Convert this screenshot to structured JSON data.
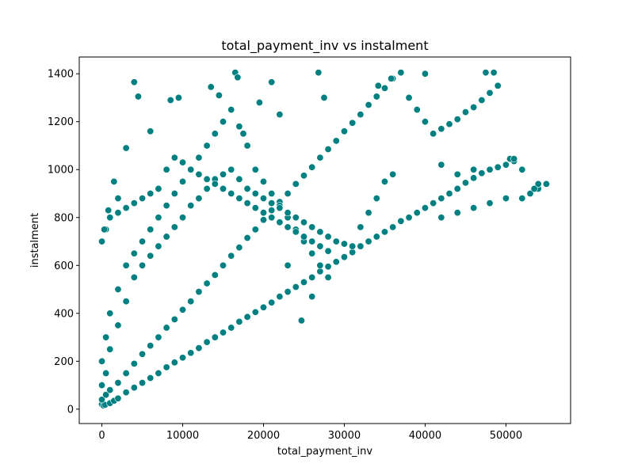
{
  "chart_data": {
    "type": "scatter",
    "title": "total_payment_inv vs instalment",
    "xlabel": "total_payment_inv",
    "ylabel": "instalment",
    "xlim": [
      -2800,
      58000
    ],
    "ylim": [
      -60,
      1470
    ],
    "x_ticks": [
      0,
      10000,
      20000,
      30000,
      40000,
      50000
    ],
    "x_tick_labels": [
      "0",
      "10000",
      "20000",
      "30000",
      "40000",
      "50000"
    ],
    "y_ticks": [
      0,
      200,
      400,
      600,
      800,
      1000,
      1200,
      1400
    ],
    "y_tick_labels": [
      "0",
      "200",
      "400",
      "600",
      "800",
      "1000",
      "1200",
      "1400"
    ],
    "grid": false,
    "legend": "none",
    "marker_color": "#008080",
    "marker_edge_color": "#ffffff",
    "series": [
      {
        "x": [
          0,
          200,
          400,
          1000,
          1500,
          2000,
          3000,
          4000,
          5000,
          6000,
          7000,
          8000,
          9000,
          10000,
          11000,
          12000,
          13000,
          14000,
          15000,
          16000,
          17000,
          18000,
          19000,
          20000,
          21000,
          22000,
          23000,
          24000,
          25000,
          26000,
          27000,
          28000,
          29000,
          30000,
          31000,
          32000,
          33000,
          34000,
          35000,
          36000,
          37000,
          38000,
          39000,
          40000,
          41000,
          42000,
          43000,
          44000,
          45000,
          46000,
          47000,
          48000,
          49000,
          50000,
          51000,
          52000,
          53000,
          54000,
          55000,
          0,
          500,
          1000,
          2000,
          3000,
          4000,
          5000,
          6000,
          7000,
          8000,
          9000,
          10000,
          11000,
          12000,
          13000,
          14000,
          15000,
          16000,
          17000,
          18000,
          19000,
          20000,
          21000,
          22000,
          23000,
          24000,
          25000,
          26000,
          27000,
          28000,
          29000,
          30000,
          31000,
          32000,
          33000,
          34000,
          35000,
          36000,
          37000,
          38000,
          39000,
          40000,
          41000,
          42000,
          43000,
          44000,
          45000,
          46000,
          47000,
          48000,
          49000,
          0,
          500,
          1000,
          2000,
          3000,
          4000,
          5000,
          6000,
          7000,
          8000,
          9000,
          10000,
          11000,
          12000,
          13000,
          14000,
          15000,
          16000,
          17000,
          18000,
          19000,
          20000,
          21000,
          22000,
          23000,
          24000,
          25000,
          26000,
          27000,
          28000,
          0,
          500,
          1000,
          2000,
          3000,
          4000,
          5000,
          6000,
          7000,
          8000,
          9000,
          10000,
          11000,
          12000,
          13000,
          14000,
          15000,
          16000,
          17000,
          18000,
          19000,
          20000,
          21000,
          22000,
          23000,
          24000,
          25000,
          26000,
          27000,
          28000,
          29000,
          30000,
          31000,
          32000,
          33000,
          34000,
          35000,
          36000,
          0,
          500,
          1000,
          2000,
          3000,
          4000,
          5000,
          6000,
          7000,
          8000,
          9000,
          10000,
          11000,
          12000,
          13000,
          14000,
          15000,
          16000,
          17000,
          18000,
          19000,
          20000,
          21000,
          22000,
          23000,
          24000,
          25000,
          26000,
          27000,
          28000,
          4000,
          4500,
          6000,
          8500,
          9500,
          13500,
          14500,
          16500,
          16800,
          17500,
          19500,
          21000,
          22000,
          26800,
          27500,
          40000,
          47500,
          48500,
          37000,
          35800,
          34200,
          42000,
          44000,
          46000,
          50500,
          51000,
          52000,
          54000,
          55000,
          53500,
          50000,
          48000,
          46000,
          44000,
          42000,
          24700,
          26000,
          23000,
          3000,
          2000,
          1500,
          800,
          300
        ],
        "y": [
          20,
          15,
          18,
          25,
          35,
          45,
          70,
          90,
          110,
          130,
          150,
          175,
          195,
          215,
          235,
          255,
          280,
          300,
          320,
          340,
          365,
          385,
          405,
          425,
          445,
          470,
          490,
          510,
          530,
          550,
          575,
          595,
          615,
          635,
          655,
          680,
          700,
          720,
          740,
          760,
          785,
          800,
          820,
          840,
          860,
          880,
          900,
          920,
          945,
          965,
          985,
          1000,
          1010,
          1020,
          1035,
          880,
          900,
          920,
          940,
          40,
          60,
          80,
          110,
          150,
          190,
          230,
          265,
          300,
          340,
          375,
          415,
          450,
          490,
          525,
          560,
          600,
          640,
          675,
          715,
          750,
          790,
          830,
          865,
          900,
          940,
          975,
          1010,
          1050,
          1085,
          1120,
          1160,
          1195,
          1230,
          1270,
          1305,
          1340,
          1380,
          1405,
          1300,
          1250,
          1200,
          1150,
          1170,
          1190,
          1210,
          1240,
          1260,
          1290,
          1320,
          1350,
          200,
          300,
          400,
          500,
          600,
          650,
          700,
          750,
          800,
          850,
          900,
          950,
          1000,
          1050,
          1100,
          1150,
          1200,
          1250,
          1180,
          1100,
          1000,
          950,
          900,
          850,
          800,
          750,
          700,
          650,
          600,
          550,
          100,
          150,
          250,
          350,
          450,
          550,
          600,
          640,
          680,
          720,
          760,
          800,
          850,
          880,
          920,
          960,
          980,
          1000,
          960,
          920,
          900,
          880,
          860,
          840,
          820,
          800,
          780,
          760,
          740,
          720,
          700,
          690,
          680,
          760,
          820,
          880,
          950,
          980,
          700,
          750,
          800,
          820,
          840,
          860,
          880,
          900,
          920,
          1000,
          1050,
          1030,
          1000,
          980,
          960,
          940,
          920,
          900,
          880,
          860,
          840,
          820,
          800,
          780,
          760,
          740,
          720,
          700,
          680,
          660,
          1365,
          1305,
          1160,
          1290,
          1300,
          1345,
          1310,
          1405,
          1385,
          1150,
          1280,
          1365,
          1230,
          1405,
          1300,
          1400,
          1405,
          1405,
          1405,
          1380,
          1350,
          1020,
          980,
          1000,
          1045,
          1045,
          1000,
          940,
          940,
          920,
          880,
          860,
          840,
          820,
          800,
          370,
          470,
          600,
          1090,
          880,
          950,
          830,
          750
        ]
      }
    ]
  }
}
